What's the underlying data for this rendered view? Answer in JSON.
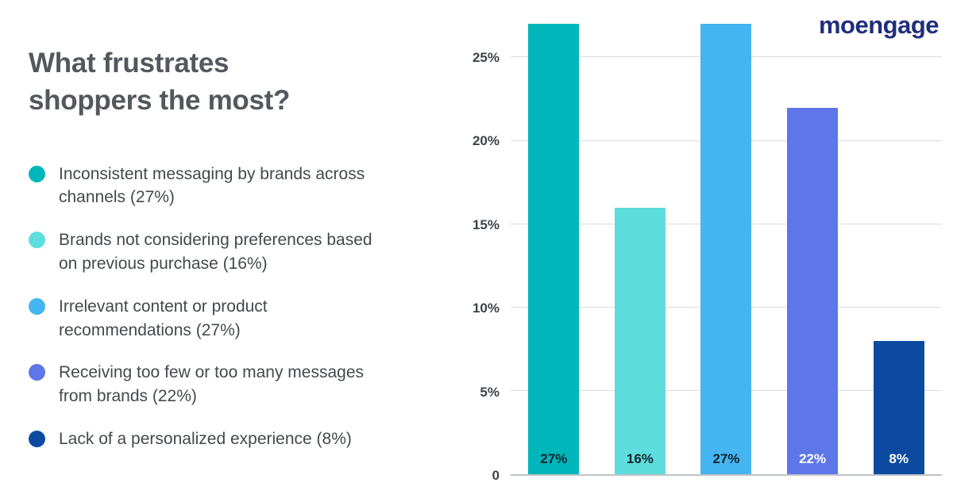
{
  "logo": {
    "text": "moengage",
    "color": "#202e7e"
  },
  "title": {
    "line1": "What frustrates",
    "line2": "shoppers the most?"
  },
  "legend": {
    "items": [
      {
        "label": "Inconsistent messaging by brands across channels (27%)",
        "color": "#00b6ba"
      },
      {
        "label": "Brands not considering preferences based on previous purchase (16%)",
        "color": "#5edddd"
      },
      {
        "label": "Irrelevant content or product recommendations (27%)",
        "color": "#45b5f1"
      },
      {
        "label": "Receiving too few or too many messages from brands (22%)",
        "color": "#5f76e8"
      },
      {
        "label": "Lack of a personalized experience (8%)",
        "color": "#0c4aa1"
      }
    ]
  },
  "chart_data": {
    "type": "bar",
    "title": "What frustrates shoppers the most?",
    "categories": [
      "Inconsistent messaging by brands across channels",
      "Brands not considering preferences based on previous purchase",
      "Irrelevant content or product recommendations",
      "Receiving too few or too many messages from brands",
      "Lack of a personalized experience"
    ],
    "values": [
      27,
      16,
      27,
      22,
      8
    ],
    "value_labels": [
      "27%",
      "16%",
      "27%",
      "22%",
      "8%"
    ],
    "bar_colors": [
      "#00b6ba",
      "#5edddd",
      "#45b5f1",
      "#5f76e8",
      "#0c4aa1"
    ],
    "value_label_colors": [
      "#10242c",
      "#10242c",
      "#10242c",
      "#ffffff",
      "#ffffff"
    ],
    "yticks": [
      {
        "label": "25%",
        "value": 25
      },
      {
        "label": "20%",
        "value": 20
      },
      {
        "label": "15%",
        "value": 15
      },
      {
        "label": "10%",
        "value": 10
      },
      {
        "label": "5%",
        "value": 5
      },
      {
        "label": "0",
        "value": 0
      }
    ],
    "ylim": [
      0,
      27.4
    ],
    "grid": true,
    "xlabel": "",
    "ylabel": "",
    "legend_position": "left"
  }
}
